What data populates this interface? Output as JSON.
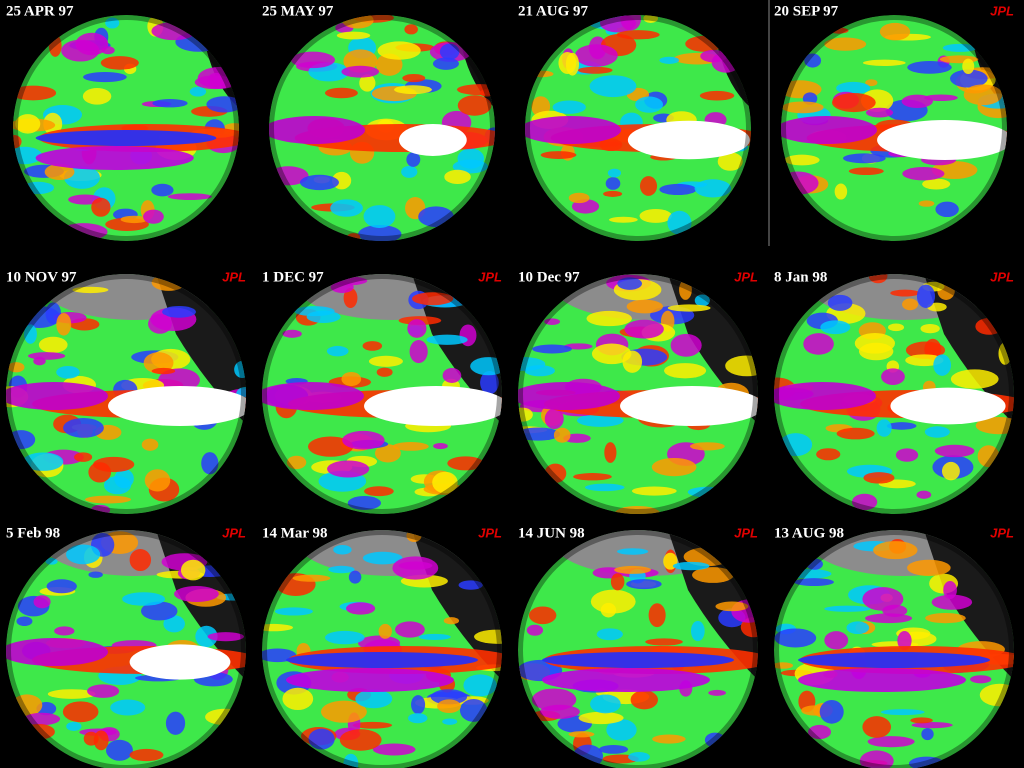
{
  "panels": [
    {
      "date": "25 APR 97"
    },
    {
      "date": "25 MAY 97"
    },
    {
      "date": "21 AUG 97"
    },
    {
      "date": "20 SEP 97",
      "badge": "JPL"
    },
    {
      "date": "10 NOV 97",
      "badge": "JPL"
    },
    {
      "date": "1 DEC 97",
      "badge": "JPL"
    },
    {
      "date": "10 Dec 97",
      "badge": "JPL"
    },
    {
      "date": "8 Jan 98",
      "badge": "JPL"
    },
    {
      "date": "5 Feb 98",
      "badge": "JPL"
    },
    {
      "date": "14 Mar 98",
      "badge": "JPL"
    },
    {
      "date": "14 JUN 98",
      "badge": "JPL"
    },
    {
      "date": "13 AUG 98",
      "badge": "JPL"
    }
  ]
}
